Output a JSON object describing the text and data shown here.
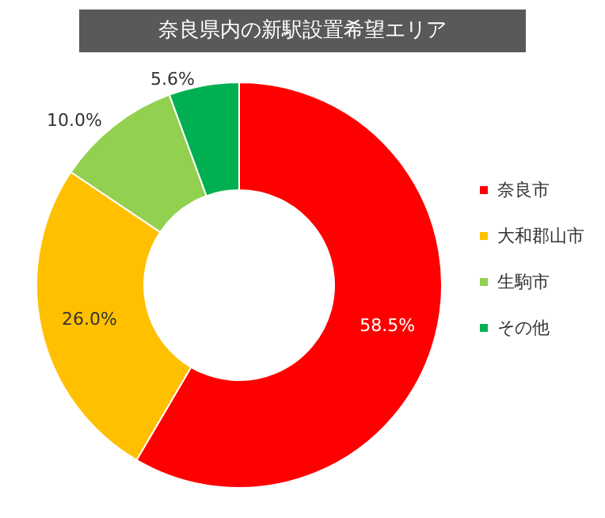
{
  "chart_data": {
    "type": "donut",
    "title": "奈良県内の新駅設置希望エリア",
    "categories": [
      "奈良市",
      "大和郡山市",
      "生駒市",
      "その他"
    ],
    "values": [
      58.5,
      26.0,
      10.0,
      5.6
    ],
    "colors": [
      "#ff0000",
      "#ffc000",
      "#92d050",
      "#00b050"
    ],
    "value_labels": [
      "58.5%",
      "26.0%",
      "10.0%",
      "5.6%"
    ],
    "legend": "right"
  }
}
